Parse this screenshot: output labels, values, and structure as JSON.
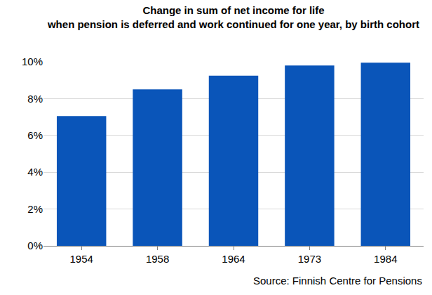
{
  "chart_data": {
    "type": "bar",
    "title": "Change in sum of net income for life\nwhen pension is deferred and work continued for one year, by birth cohort",
    "categories": [
      "1954",
      "1958",
      "1964",
      "1973",
      "1984"
    ],
    "values": [
      7.05,
      8.5,
      9.25,
      9.8,
      9.95
    ],
    "color": "#0a55b9",
    "ylim": [
      0,
      10
    ],
    "yticks": [
      {
        "value": 0,
        "label": "0%"
      },
      {
        "value": 2,
        "label": "2%"
      },
      {
        "value": 4,
        "label": "4%"
      },
      {
        "value": 6,
        "label": "6%"
      },
      {
        "value": 8,
        "label": "8%"
      },
      {
        "value": 10,
        "label": "10%"
      }
    ],
    "grid": true,
    "annotations": [
      "Source: Finnish Centre for Pensions"
    ]
  }
}
